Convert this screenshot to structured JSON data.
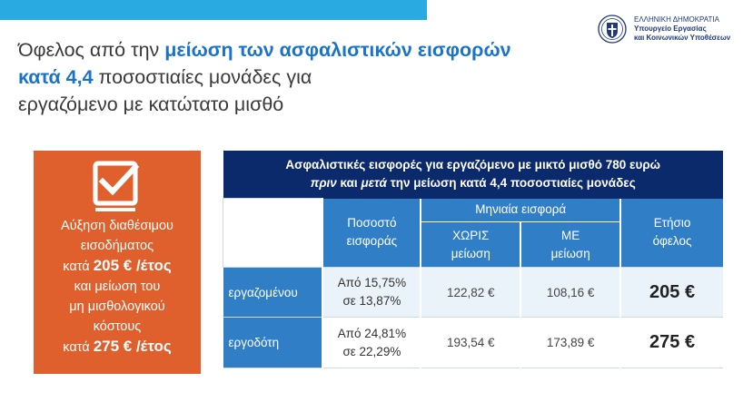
{
  "header": {
    "title_part1": "Όφελος από την ",
    "title_highlight": "μείωση των ασφαλιστικών εισφορών",
    "title_line2_highlight": "κατά 4,4",
    "title_line2_rest": " ποσοστιαίες μονάδες για",
    "title_line3": "εργαζόμενο με κατώτατο μισθό"
  },
  "logo": {
    "line1": "ΕΛΛΗΝΙΚΗ ΔΗΜΟΚΡΑΤΙΑ",
    "line2": "Υπουργείο Εργασίας",
    "line3": "και Κοινωνικών Υποθέσεων"
  },
  "summary": {
    "l1": "Αύξηση διαθέσιμου",
    "l2": "εισοδήματος",
    "l3a": "κατά ",
    "l3b": "205 € /έτος",
    "l4": "και μείωση του",
    "l5": "μη μισθολογικού",
    "l6": "κόστους",
    "l7a": "κατά ",
    "l7b": "275 € /έτος"
  },
  "table": {
    "title_line1": "Ασφαλιστικές εισφορές για εργαζόμενο με μικτό μισθό 780 ευρώ",
    "title_line2_a": "πριν",
    "title_line2_b": " και ",
    "title_line2_c": "μετά",
    "title_line2_d": " την μείωση κατά 4,4 ποσοστιαίες μονάδες",
    "col_rate_1": "Ποσοστό",
    "col_rate_2": "εισφοράς",
    "col_monthly": "Μηνιαία εισφορά",
    "col_without_1": "ΧΩΡΙΣ",
    "col_without_2": "μείωση",
    "col_with_1": "ΜΕ",
    "col_with_2": "μείωση",
    "col_annual_1": "Ετήσιο",
    "col_annual_2": "όφελος",
    "rows": [
      {
        "label": "εργαζομένου",
        "rate_1": "Από 15,75%",
        "rate_2": "σε 13,87%",
        "without": "122,82 €",
        "with": "108,16 €",
        "benefit": "205 €"
      },
      {
        "label": "εργοδότη",
        "rate_1": "Από 24,81%",
        "rate_2": "σε 22,29%",
        "without": "193,54 €",
        "with": "173,89 €",
        "benefit": "275 €"
      }
    ]
  },
  "colors": {
    "top_bar": "#29abe2",
    "navy": "#0b2a6b",
    "blue": "#2f7ec6",
    "orange": "#e0602d",
    "highlight_text": "#1a73c8"
  }
}
